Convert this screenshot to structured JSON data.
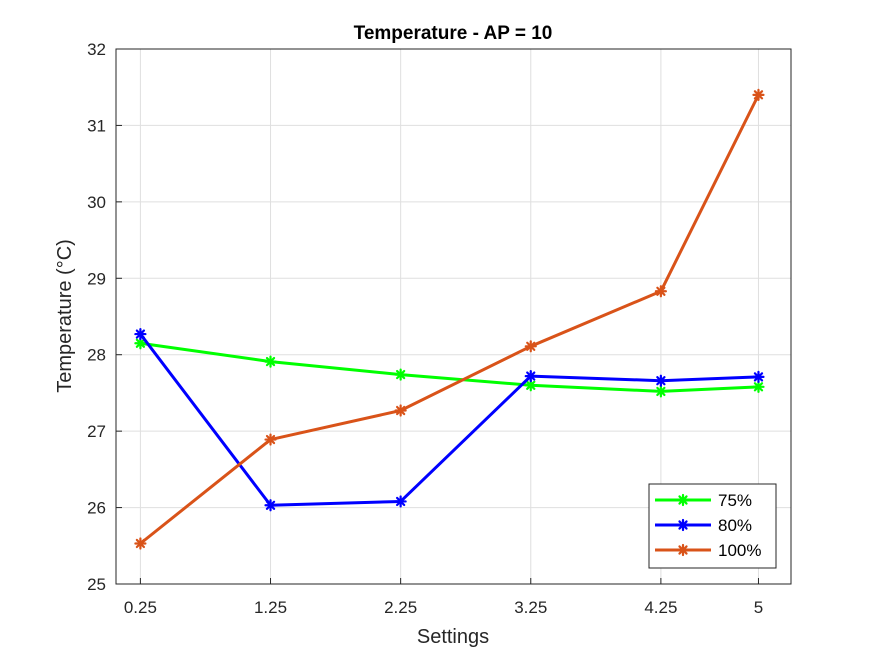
{
  "chart_data": {
    "type": "line",
    "title": "Temperature - AP = 10",
    "xlabel": "Settings",
    "ylabel": "Temperature (°C)",
    "x": [
      0.25,
      1.25,
      2.25,
      3.25,
      4.25,
      5
    ],
    "x_tick_labels": [
      "0.25",
      "1.25",
      "2.25",
      "3.25",
      "4.25",
      "5"
    ],
    "xlim": [
      0.0625,
      5.25
    ],
    "ylim": [
      25,
      32
    ],
    "y_ticks": [
      25,
      26,
      27,
      28,
      29,
      30,
      31,
      32
    ],
    "grid": true,
    "legend_position": "bottom-right",
    "series": [
      {
        "name": "75%",
        "color": "#00ff00",
        "values": [
          28.15,
          27.91,
          27.74,
          27.6,
          27.52,
          27.58
        ]
      },
      {
        "name": "80%",
        "color": "#0000ff",
        "values": [
          28.27,
          26.03,
          26.08,
          27.72,
          27.66,
          27.71
        ]
      },
      {
        "name": "100%",
        "color": "#d95319",
        "values": [
          25.53,
          26.89,
          27.27,
          28.11,
          28.83,
          31.4
        ]
      }
    ],
    "marker": "asterisk"
  }
}
